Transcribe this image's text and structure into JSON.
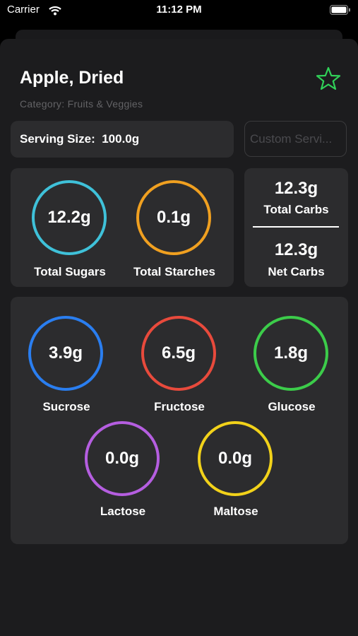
{
  "status": {
    "carrier": "Carrier",
    "time": "11:12 PM"
  },
  "food": {
    "name": "Apple, Dried",
    "category": "Category: Fruits & Veggies",
    "serving_size": "Serving Size:  100.0g",
    "custom_serving_placeholder": "Custom Servi..."
  },
  "totals": [
    {
      "value": "12.2g",
      "label": "Total Sugars"
    },
    {
      "value": "0.1g",
      "label": "Total Starches"
    }
  ],
  "carbs": [
    {
      "value": "12.3g",
      "label": "Total Carbs"
    },
    {
      "value": "12.3g",
      "label": "Net Carbs"
    }
  ],
  "sugars": [
    {
      "value": "3.9g",
      "label": "Sucrose"
    },
    {
      "value": "6.5g",
      "label": "Fructose"
    },
    {
      "value": "1.8g",
      "label": "Glucose"
    },
    {
      "value": "0.0g",
      "label": "Lactose"
    },
    {
      "value": "0.0g",
      "label": "Maltose"
    }
  ]
}
